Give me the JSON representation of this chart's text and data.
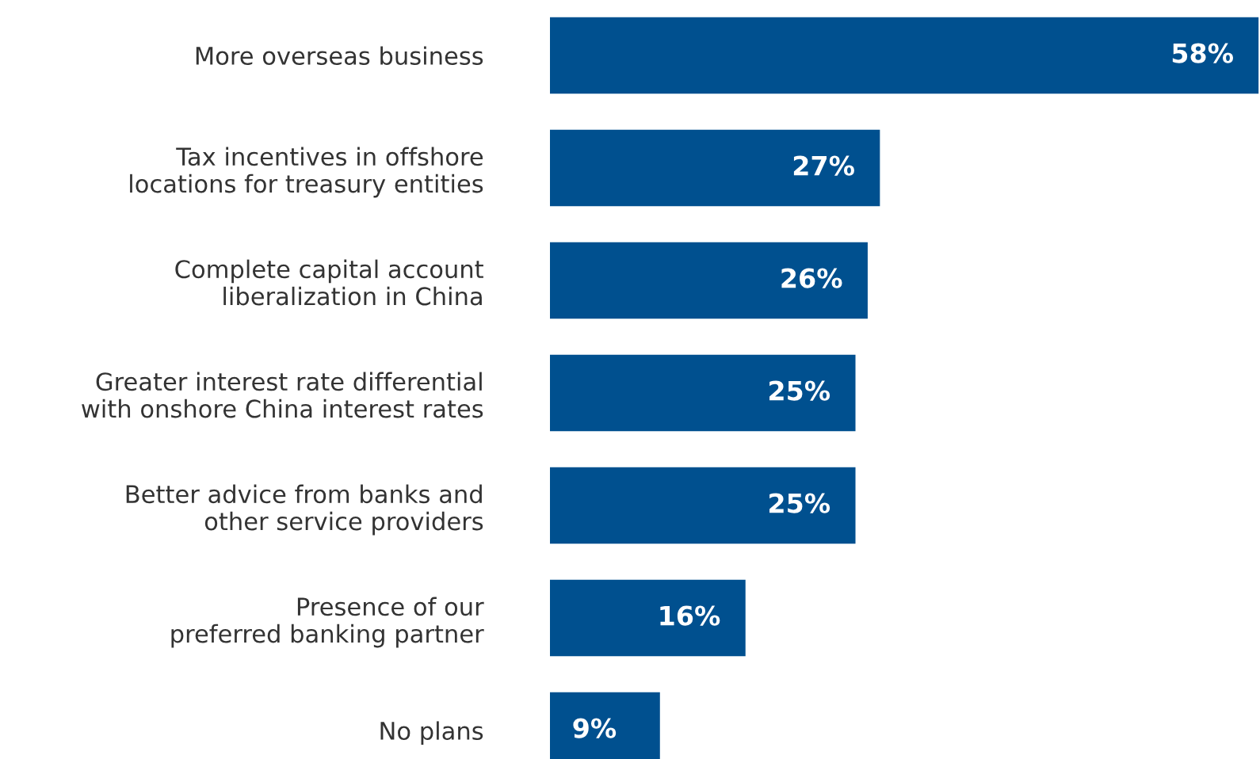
{
  "chart_data": {
    "type": "bar",
    "orientation": "horizontal",
    "categories": [
      "More overseas business",
      "Tax incentives in offshore\nlocations for treasury entities",
      "Complete capital account\nliberalization in China",
      "Greater interest rate differential\nwith onshore China interest rates",
      "Better advice from banks and\nother service providers",
      "Presence of our\npreferred banking partner",
      "No plans"
    ],
    "values": [
      58,
      27,
      26,
      25,
      25,
      16,
      9
    ],
    "value_labels": [
      "58%",
      "27%",
      "26%",
      "25%",
      "25%",
      "16%",
      "9%"
    ],
    "color": "#00508f",
    "grid": false,
    "legend": false
  }
}
